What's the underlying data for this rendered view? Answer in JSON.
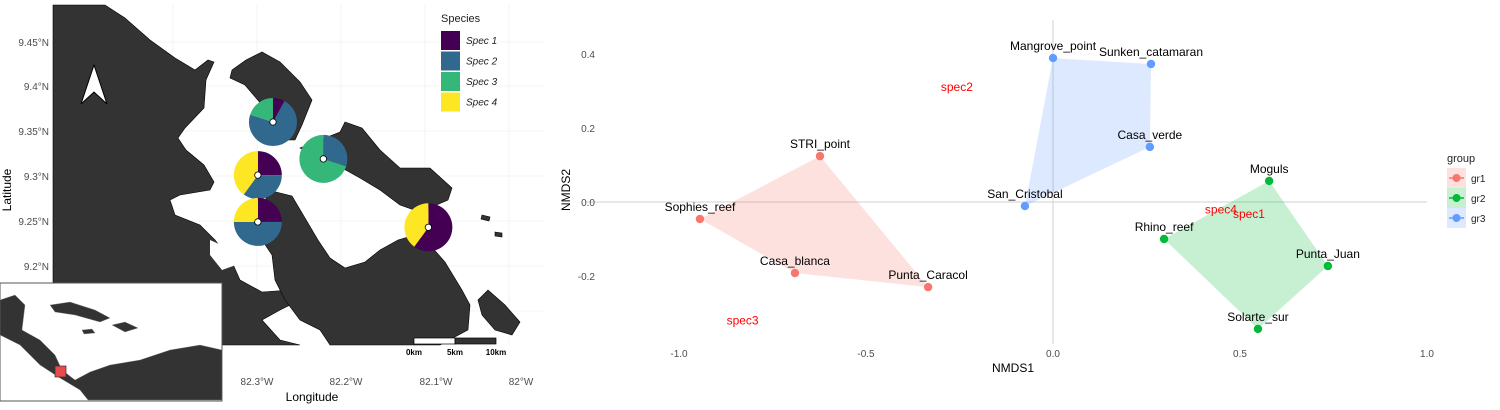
{
  "chart_data": [
    {
      "type": "map-pie",
      "xlabel": "Longitude",
      "ylabel": "Latitude",
      "x_ticks": [
        "82.3°W",
        "82.2°W",
        "82.1°W",
        "82°W"
      ],
      "y_ticks": [
        "9.45°N",
        "9.4°N",
        "9.35°N",
        "9.3°N",
        "9.25°N",
        "9.2°N"
      ],
      "legend": {
        "title": "Species",
        "position": "top-right",
        "entries": [
          "Spec 1",
          "Spec 2",
          "Spec 3",
          "Spec 4"
        ],
        "colors": [
          "#440154",
          "#31688e",
          "#35b779",
          "#fde725"
        ]
      },
      "scale_bar": [
        "0km",
        "5km",
        "10km"
      ],
      "pies": [
        {
          "lon": -82.281,
          "lat": 9.36,
          "values": [
            0.08,
            0.72,
            0.2,
            0.0
          ]
        },
        {
          "lon": -82.221,
          "lat": 9.319,
          "values": [
            0.0,
            0.3,
            0.7,
            0.0
          ]
        },
        {
          "lon": -82.299,
          "lat": 9.301,
          "values": [
            0.25,
            0.35,
            0.0,
            0.4
          ]
        },
        {
          "lon": -82.299,
          "lat": 9.249,
          "values": [
            0.25,
            0.5,
            0.0,
            0.25
          ]
        },
        {
          "lon": -82.096,
          "lat": 9.243,
          "values": [
            0.6,
            0.0,
            0.0,
            0.4
          ]
        }
      ]
    },
    {
      "type": "scatter",
      "xlabel": "NMDS1",
      "ylabel": "NMDS2",
      "xlim": [
        -1.25,
        1.0
      ],
      "ylim": [
        -0.38,
        0.48
      ],
      "x_ticks": [
        -1.0,
        -0.5,
        0.0,
        0.5,
        1.0
      ],
      "x_tick_labels": [
        "-1.0",
        "-0.5",
        "0.0",
        "0.5",
        "1.0"
      ],
      "y_ticks": [
        -0.2,
        0.0,
        0.2,
        0.4
      ],
      "y_tick_labels": [
        "-0.2",
        "0.0",
        "0.2",
        "0.4"
      ],
      "legend": {
        "title": "group",
        "position": "right",
        "entries": [
          "gr1",
          "gr2",
          "gr3"
        ],
        "colors": [
          "#f8766d",
          "#00ba38",
          "#619cff"
        ]
      },
      "sites": [
        {
          "name": "Sophies_reef",
          "group": "gr1",
          "x": -0.944,
          "y": -0.046
        },
        {
          "name": "STRI_point",
          "group": "gr1",
          "x": -0.623,
          "y": 0.124
        },
        {
          "name": "Casa_blanca",
          "group": "gr1",
          "x": -0.69,
          "y": -0.192
        },
        {
          "name": "Punta_Caracol",
          "group": "gr1",
          "x": -0.334,
          "y": -0.23
        },
        {
          "name": "Moguls",
          "group": "gr2",
          "x": 0.578,
          "y": 0.057
        },
        {
          "name": "Rhino_reef",
          "group": "gr2",
          "x": 0.297,
          "y": -0.1
        },
        {
          "name": "Punta_Juan",
          "group": "gr2",
          "x": 0.735,
          "y": -0.173
        },
        {
          "name": "Solarte_sur",
          "group": "gr2",
          "x": 0.548,
          "y": -0.343
        },
        {
          "name": "Mangrove_point",
          "group": "gr3",
          "x": 0.0,
          "y": 0.389
        },
        {
          "name": "Sunken_catamaran",
          "group": "gr3",
          "x": 0.262,
          "y": 0.373
        },
        {
          "name": "Casa_verde",
          "group": "gr3",
          "x": 0.259,
          "y": 0.149
        },
        {
          "name": "San_Cristobal",
          "group": "gr3",
          "x": -0.075,
          "y": -0.011
        }
      ],
      "species": [
        {
          "name": "spec1",
          "x": 0.524,
          "y": -0.032
        },
        {
          "name": "spec2",
          "x": -0.257,
          "y": 0.311
        },
        {
          "name": "spec3",
          "x": -0.83,
          "y": -0.32
        },
        {
          "name": "spec4",
          "x": 0.449,
          "y": -0.02
        }
      ]
    }
  ]
}
